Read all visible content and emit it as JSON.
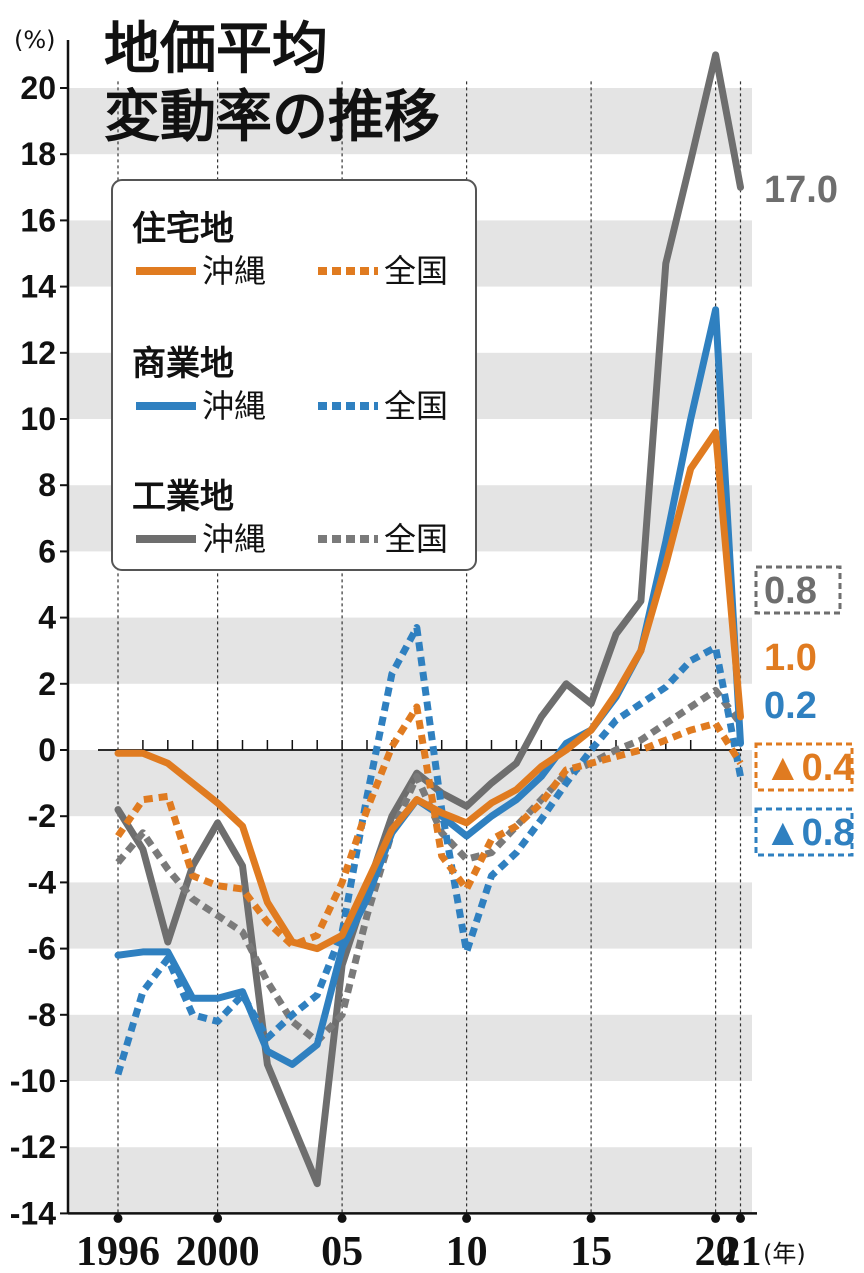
{
  "chart_data": {
    "type": "line",
    "title": "地価平均\n変動率の推移",
    "ylabel": "(%)",
    "xunit": "(年)",
    "ylim": [
      -14,
      21
    ],
    "yticks": [
      "20",
      "18",
      "16",
      "14",
      "12",
      "10",
      "8",
      "6",
      "4",
      "2",
      "0",
      "-2",
      "-4",
      "-6",
      "-8",
      "-10",
      "-12",
      "-14"
    ],
    "xticks": [
      {
        "year": 1996,
        "label": "1996"
      },
      {
        "year": 2000,
        "label": "2000"
      },
      {
        "year": 2005,
        "label": "05"
      },
      {
        "year": 2010,
        "label": "10"
      },
      {
        "year": 2015,
        "label": "15"
      },
      {
        "year": 2020,
        "label": "20"
      },
      {
        "year": 2021,
        "label": "21"
      }
    ],
    "x": [
      1996,
      1997,
      1998,
      1999,
      2000,
      2001,
      2002,
      2003,
      2004,
      2005,
      2006,
      2007,
      2008,
      2009,
      2010,
      2011,
      2012,
      2013,
      2014,
      2015,
      2016,
      2017,
      2018,
      2019,
      2020,
      2021
    ],
    "groups": [
      {
        "name": "住宅地",
        "items": [
          {
            "label": "沖縄",
            "series": "res_ok"
          },
          {
            "label": "全国",
            "series": "res_nat"
          }
        ]
      },
      {
        "name": "商業地",
        "items": [
          {
            "label": "沖縄",
            "series": "com_ok"
          },
          {
            "label": "全国",
            "series": "com_nat"
          }
        ]
      },
      {
        "name": "工業地",
        "items": [
          {
            "label": "沖縄",
            "series": "ind_ok"
          },
          {
            "label": "全国",
            "series": "ind_nat"
          }
        ]
      }
    ],
    "series": [
      {
        "id": "ind_ok",
        "color": "#6e6e6e",
        "dash": false,
        "values": [
          -1.8,
          -3.0,
          -5.8,
          -3.5,
          -2.2,
          -3.5,
          -9.5,
          -11.3,
          -13.1,
          -6.5,
          -4.2,
          -2.0,
          -0.7,
          -1.3,
          -1.7,
          -1.0,
          -0.4,
          1.0,
          2.0,
          1.4,
          3.5,
          4.5,
          14.7,
          17.8,
          21.0,
          17.0
        ]
      },
      {
        "id": "ind_nat",
        "color": "#7a7a7a",
        "dash": true,
        "values": [
          -3.4,
          -2.5,
          -3.6,
          -4.5,
          -5.0,
          -5.5,
          -7.0,
          -8.2,
          -8.8,
          -8.0,
          -5.0,
          -2.5,
          -0.8,
          -2.5,
          -3.3,
          -3.1,
          -2.3,
          -1.5,
          -0.7,
          -0.4,
          0.0,
          0.3,
          0.8,
          1.3,
          1.8,
          0.8
        ]
      },
      {
        "id": "com_ok",
        "color": "#2f80c0",
        "dash": false,
        "values": [
          -6.2,
          -6.1,
          -6.1,
          -7.5,
          -7.5,
          -7.3,
          -9.1,
          -9.5,
          -8.9,
          -6.0,
          -4.5,
          -2.5,
          -1.5,
          -2.0,
          -2.6,
          -2.0,
          -1.5,
          -0.8,
          0.2,
          0.6,
          1.6,
          3.0,
          6.3,
          10.0,
          13.3,
          0.2
        ]
      },
      {
        "id": "com_nat",
        "color": "#2f80c0",
        "dash": true,
        "values": [
          -9.8,
          -7.3,
          -6.3,
          -8.0,
          -8.2,
          -7.4,
          -8.7,
          -8.0,
          -7.4,
          -5.5,
          -1.4,
          2.3,
          3.7,
          -1.8,
          -6.1,
          -3.8,
          -3.1,
          -2.1,
          -1.0,
          0.0,
          0.9,
          1.4,
          1.9,
          2.7,
          3.1,
          -0.8
        ]
      },
      {
        "id": "res_ok",
        "color": "#e07b20",
        "dash": false,
        "values": [
          -0.1,
          -0.1,
          -0.4,
          -1.0,
          -1.6,
          -2.3,
          -4.6,
          -5.8,
          -6.0,
          -5.6,
          -4.0,
          -2.4,
          -1.5,
          -1.9,
          -2.2,
          -1.6,
          -1.2,
          -0.5,
          0.0,
          0.6,
          1.7,
          3.0,
          5.6,
          8.5,
          9.6,
          1.0
        ]
      },
      {
        "id": "res_nat",
        "color": "#e07b20",
        "dash": true,
        "values": [
          -2.6,
          -1.5,
          -1.4,
          -3.8,
          -4.1,
          -4.2,
          -5.2,
          -5.9,
          -5.6,
          -4.0,
          -1.8,
          0.1,
          1.3,
          -3.2,
          -4.2,
          -2.7,
          -2.3,
          -1.6,
          -0.6,
          -0.4,
          -0.2,
          0.0,
          0.3,
          0.6,
          0.8,
          -0.4
        ]
      }
    ],
    "end_labels": [
      {
        "series": "ind_ok",
        "text": "17.0",
        "boxed": false
      },
      {
        "series": "ind_nat",
        "text": "0.8",
        "boxed": true
      },
      {
        "series": "res_ok",
        "text": "1.0",
        "boxed": false
      },
      {
        "series": "com_ok",
        "text": "0.2",
        "boxed": false
      },
      {
        "series": "res_nat",
        "text": "▲0.4",
        "boxed": true
      },
      {
        "series": "com_nat",
        "text": "▲0.8",
        "boxed": true
      }
    ],
    "grid": "alternating horizontal bands"
  }
}
